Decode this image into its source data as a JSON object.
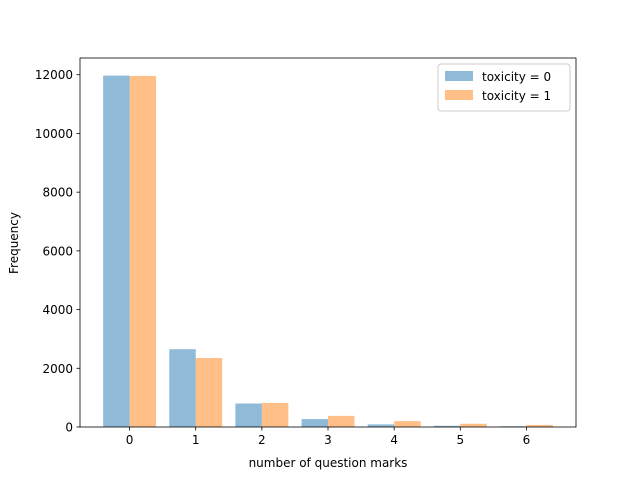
{
  "chart_data": {
    "type": "bar",
    "title": "",
    "xlabel": "number of question marks",
    "ylabel": "Frequency",
    "categories": [
      "0",
      "1",
      "2",
      "3",
      "4",
      "5",
      "6"
    ],
    "xlim": [
      -0.75,
      6.75
    ],
    "ylim": [
      0,
      12570
    ],
    "yticks": [
      0,
      2000,
      4000,
      6000,
      8000,
      10000,
      12000
    ],
    "grid": false,
    "legend_position": "top-right",
    "series": [
      {
        "name": "toxicity = 0",
        "color": "#1f77b4",
        "opacity": 0.5,
        "values": [
          11970,
          2650,
          800,
          270,
          90,
          40,
          25
        ]
      },
      {
        "name": "toxicity = 1",
        "color": "#ff7f0e",
        "opacity": 0.5,
        "values": [
          11960,
          2350,
          820,
          380,
          200,
          110,
          70
        ]
      }
    ]
  }
}
